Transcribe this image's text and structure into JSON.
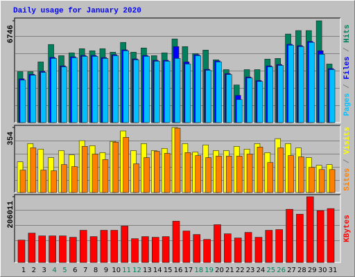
{
  "chart_data": {
    "type": "bar",
    "title": "Daily usage for January 2020",
    "categories": [
      "1",
      "2",
      "3",
      "4",
      "5",
      "6",
      "7",
      "8",
      "9",
      "10",
      "11",
      "12",
      "13",
      "14",
      "15",
      "16",
      "17",
      "18",
      "19",
      "20",
      "21",
      "22",
      "23",
      "24",
      "25",
      "26",
      "27",
      "28",
      "29",
      "30",
      "31"
    ],
    "highlight_categories": [
      "4",
      "5",
      "11",
      "12",
      "18",
      "19",
      "25",
      "26"
    ],
    "highlight_color": "#00805C",
    "separator": "/",
    "panels": [
      {
        "ylim": [
          0,
          6746
        ],
        "yticks": [
          6746
        ],
        "series": [
          {
            "name": "Hits",
            "color": "#00805C",
            "values": [
              3373,
              3373,
              4020,
              5175,
              4435,
              4620,
              4898,
              4758,
              4898,
              4667,
              5313,
              4667,
              4944,
              4435,
              4620,
              5544,
              5036,
              4574,
              4805,
              4158,
              3511,
              2495,
              3511,
              3511,
              4204,
              4251,
              5868,
              6099,
              6099,
              6746,
              3881
            ]
          },
          {
            "name": "Files",
            "color": "#0000FF",
            "values": [
              2900,
              3200,
              3400,
              4320,
              3760,
              4360,
              4450,
              4450,
              4310,
              4500,
              4820,
              4220,
              4450,
              4130,
              4130,
              5036,
              4020,
              4500,
              3530,
              4090,
              3250,
              1802,
              3020,
              2790,
              3760,
              3850,
              5190,
              5100,
              5380,
              4759,
              3580
            ]
          },
          {
            "name": "Pages",
            "color": "#00C0FF",
            "values": [
              2818,
              3142,
              3326,
              4251,
              3696,
              4297,
              4389,
              4389,
              4251,
              4435,
              4759,
              4158,
              4389,
              4066,
              4066,
              4251,
              3881,
              4435,
              3465,
              4020,
              3188,
              1525,
              2957,
              2726,
              3696,
              3789,
              5128,
              5036,
              5313,
              4528,
              3511
            ]
          }
        ]
      },
      {
        "ylim": [
          0,
          354
        ],
        "yticks": [
          354
        ],
        "series": [
          {
            "name": "Visits",
            "color": "#FFFF00",
            "values": [
              167,
              266,
              236,
              190,
              228,
              205,
              282,
              255,
              217,
              278,
              335,
              228,
              266,
              228,
              240,
              354,
              266,
              220,
              259,
              228,
              228,
              251,
              236,
              266,
              217,
              293,
              266,
              243,
              190,
              148,
              152
            ]
          },
          {
            "name": "Sites",
            "color": "#FF8000",
            "values": [
              122,
              243,
              122,
              118,
              152,
              141,
              251,
              209,
              179,
              274,
              300,
              156,
              190,
              224,
              213,
              350,
              217,
              201,
              190,
              198,
              198,
              198,
              209,
              247,
              163,
              243,
              201,
              194,
              137,
              125,
              125
            ]
          }
        ]
      },
      {
        "ylim": [
          0,
          206011
        ],
        "yticks": [
          206011
        ],
        "series": [
          {
            "name": "KBytes",
            "color": "#FF0000",
            "values": [
              70140,
              92060,
              83290,
              83290,
              83290,
              78910,
              100830,
              81100,
              100830,
              100830,
              113980,
              74530,
              81100,
              78910,
              81100,
              129330,
              98640,
              87680,
              72340,
              118370,
              89870,
              76720,
              94260,
              78910,
              100830,
              103020,
              166590,
              151250,
              206011,
              162210,
              168780
            ]
          }
        ]
      }
    ]
  }
}
